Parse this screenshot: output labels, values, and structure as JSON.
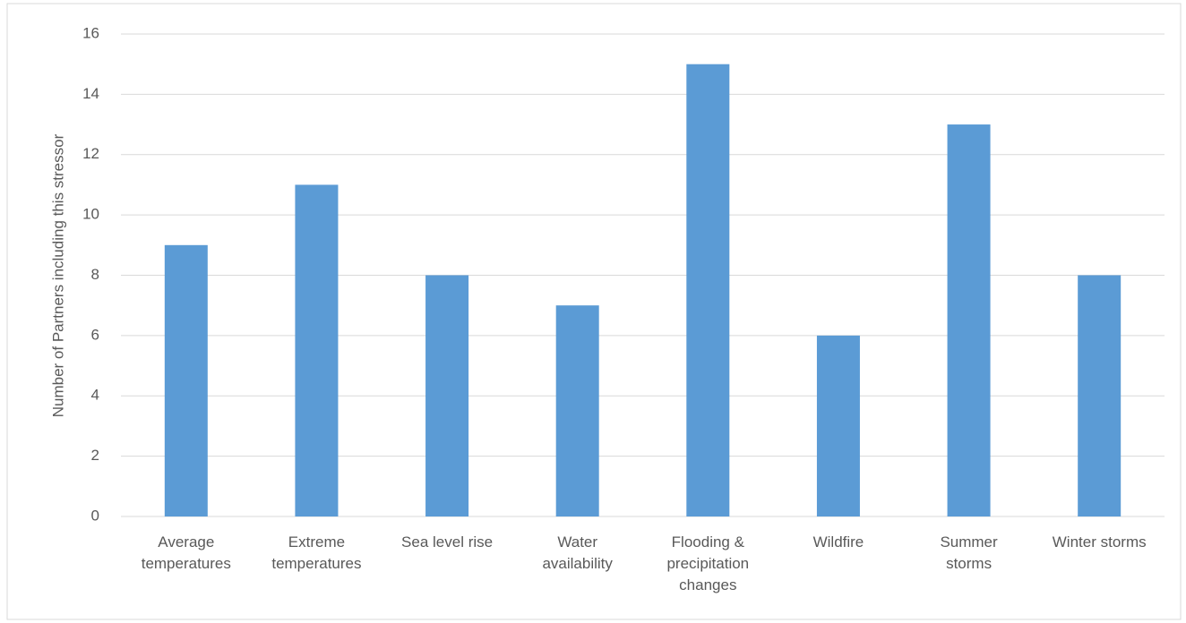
{
  "chart_data": {
    "type": "bar",
    "y_label": "Number of Partners including this stressor",
    "categories": [
      "Average temperatures",
      "Extreme temperatures",
      "Sea level rise",
      "Water availability",
      "Flooding & precipitation changes",
      "Wildfire",
      "Summer storms",
      "Winter storms"
    ],
    "values": [
      9,
      11,
      8,
      7,
      15,
      6,
      13,
      8
    ],
    "color": "#5b9bd5",
    "ylim": [
      0,
      16
    ],
    "yticks": [
      0,
      2,
      4,
      6,
      8,
      10,
      12,
      14,
      16
    ],
    "grid": true
  }
}
